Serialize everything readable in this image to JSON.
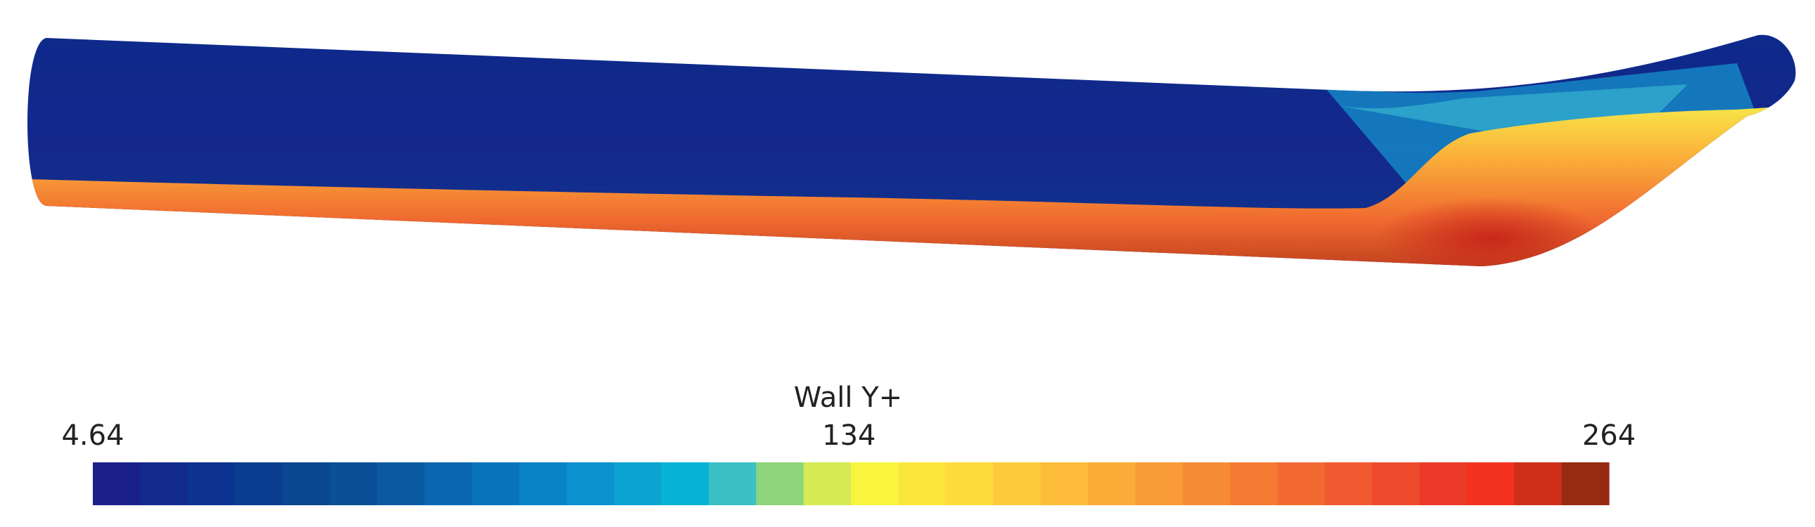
{
  "colorbar": {
    "title": "Wall Y+",
    "range": [
      4.64,
      264
    ],
    "ticks": [
      4.64,
      134,
      264
    ],
    "colors": [
      "#1a1f8a",
      "#122a8c",
      "#0b338f",
      "#083d8f",
      "#0a4691",
      "#0b4f98",
      "#0a5aa2",
      "#0a66ae",
      "#0873bb",
      "#0982c8",
      "#0b92cf",
      "#0aa3d2",
      "#06b2d6",
      "#3cc0c4",
      "#8ed47a",
      "#d5ea54",
      "#f9f53f",
      "#fbe73c",
      "#fddb3b",
      "#fdcb3a",
      "#fdbd3a",
      "#fbac38",
      "#f99c37",
      "#f68b35",
      "#f47a33",
      "#f26a32",
      "#f05a30",
      "#ee4a2d",
      "#ec3a29",
      "#f2321f",
      "#cf2f19",
      "#962b12"
    ]
  }
}
